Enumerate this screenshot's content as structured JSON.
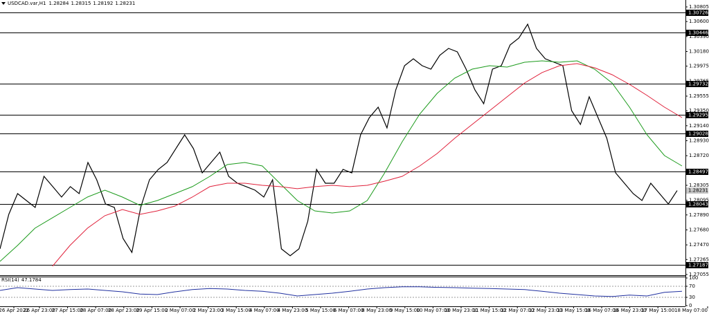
{
  "chart_data": [
    {
      "type": "line",
      "title": "USDCAD.var,H1",
      "ohlc": [
        1.28284,
        1.28315,
        1.28192,
        1.28231
      ],
      "ylim": [
        1.27045,
        1.30902
      ],
      "yticks": [
        1.30805,
        {
          "value": 1.306,
          "label": "1.30600"
        },
        {
          "value": 1.3039,
          "label": "1.30390"
        },
        {
          "value": 1.3018,
          "label": "1.30180"
        },
        1.29975,
        1.29765,
        1.29555,
        {
          "value": 1.2935,
          "label": "1.29350"
        },
        {
          "value": 1.2914,
          "label": "1.29140"
        },
        {
          "value": 1.2893,
          "label": "1.28930"
        },
        {
          "value": 1.2872,
          "label": "1.28720"
        },
        1.28305,
        1.28095,
        {
          "value": 1.2789,
          "label": "1.27890"
        },
        {
          "value": 1.2768,
          "label": "1.27680"
        },
        {
          "value": 1.2747,
          "label": "1.27470"
        },
        1.27265,
        1.27055
      ],
      "levels": [
        1.30726,
        1.30446,
        1.29732,
        1.29295,
        1.29028,
        1.28497,
        1.28043,
        1.27187
      ],
      "current_price": 1.28231,
      "time_labels": [
        "26 Apr 2022",
        "26 Apr 23:00",
        "27 Apr 15:00",
        "28 Apr 07:00",
        "28 Apr 23:00",
        "29 Apr 15:00",
        "2 May 07:00",
        "2 May 23:00",
        "3 May 15:00",
        "4 May 07:00",
        "4 May 23:00",
        "5 May 15:00",
        "6 May 07:00",
        "8 May 23:00",
        "9 May 15:00",
        "10 May 07:00",
        "10 May 23:00",
        "11 May 15:00",
        "12 May 07:00",
        "12 May 23:00",
        "13 May 15:00",
        "16 May 07:00",
        "16 May 23:00",
        "17 May 15:00",
        "18 May 07:00"
      ],
      "series": [
        {
          "color": "#000000",
          "values": [
            1.27414,
            1.27898,
            1.28189,
            1.28092,
            1.27995,
            1.28431,
            1.28286,
            1.2814,
            1.28286,
            1.28189,
            1.28625,
            1.28382,
            1.28043,
            1.27995,
            1.27559,
            1.27365,
            1.27995,
            1.28382,
            1.28528,
            1.28625,
            1.28819,
            1.29012,
            1.28819,
            1.28479,
            1.28625,
            1.2877,
            1.28431,
            1.28334,
            1.28286,
            1.28237,
            1.2814,
            1.28382,
            1.27414,
            1.27317,
            1.27414,
            1.27801,
            1.28528,
            1.28334,
            1.28334,
            1.28528,
            1.28479,
            1.29012,
            1.29255,
            1.294,
            1.29109,
            1.29642,
            1.29981,
            1.30078,
            1.29981,
            1.29933,
            1.30127,
            1.30224,
            1.30175,
            1.29933,
            1.29642,
            1.29448,
            1.29933,
            1.29981,
            1.30272,
            1.30369,
            1.30563,
            1.30224,
            1.30078,
            1.3003,
            1.29981,
            1.29351,
            1.29158,
            1.29545,
            1.29255,
            1.28964,
            1.28479,
            1.28334,
            1.28189,
            1.28092,
            1.28334,
            1.28189,
            1.28043,
            1.28231
          ]
        },
        {
          "color": "#1a9a1a",
          "values": [
            1.27239,
            1.27462,
            1.27704,
            1.2785,
            1.27995,
            1.2814,
            1.28237,
            1.2814,
            1.28024,
            1.28092,
            1.28189,
            1.28286,
            1.28431,
            1.28596,
            1.28625,
            1.28576,
            1.28334,
            1.28092,
            1.27946,
            1.27917,
            1.27946,
            1.28092,
            1.28479,
            1.28915,
            1.29303,
            1.29594,
            1.29807,
            1.29933,
            1.29981,
            1.29962,
            1.3003,
            1.30049,
            1.3003,
            1.30049,
            1.29933,
            1.29739,
            1.294,
            1.29012,
            1.28722,
            1.28576
          ]
        },
        {
          "color": "#e0203a",
          "values": [
            null,
            null,
            null,
            1.27171,
            1.27462,
            1.27704,
            1.27879,
            1.27966,
            1.27898,
            1.27946,
            1.28014,
            1.2814,
            1.28286,
            1.28334,
            1.28334,
            1.28305,
            1.28286,
            1.28257,
            1.28286,
            1.28305,
            1.28286,
            1.28305,
            1.28363,
            1.28431,
            1.28576,
            1.28751,
            1.28964,
            1.29158,
            1.29351,
            1.29545,
            1.29739,
            1.29885,
            1.29981,
            1.3001,
            1.29952,
            1.29855,
            1.2972,
            1.29565,
            1.294,
            1.29255
          ]
        }
      ]
    },
    {
      "type": "line",
      "title": "RSI(14)",
      "current_value": 47.1784,
      "ylim": [
        0,
        100
      ],
      "yticks": [
        100,
        70,
        30,
        0
      ],
      "levels": [
        70,
        30
      ],
      "series": [
        {
          "color": "#1f2f9f",
          "values": [
            55,
            65,
            60,
            55,
            58,
            60,
            55,
            50,
            42,
            40,
            50,
            58,
            62,
            60,
            55,
            52,
            45,
            35,
            40,
            45,
            52,
            60,
            65,
            68,
            68,
            66,
            65,
            63,
            62,
            60,
            58,
            52,
            45,
            40,
            35,
            33,
            38,
            35,
            48,
            52
          ]
        }
      ]
    }
  ]
}
